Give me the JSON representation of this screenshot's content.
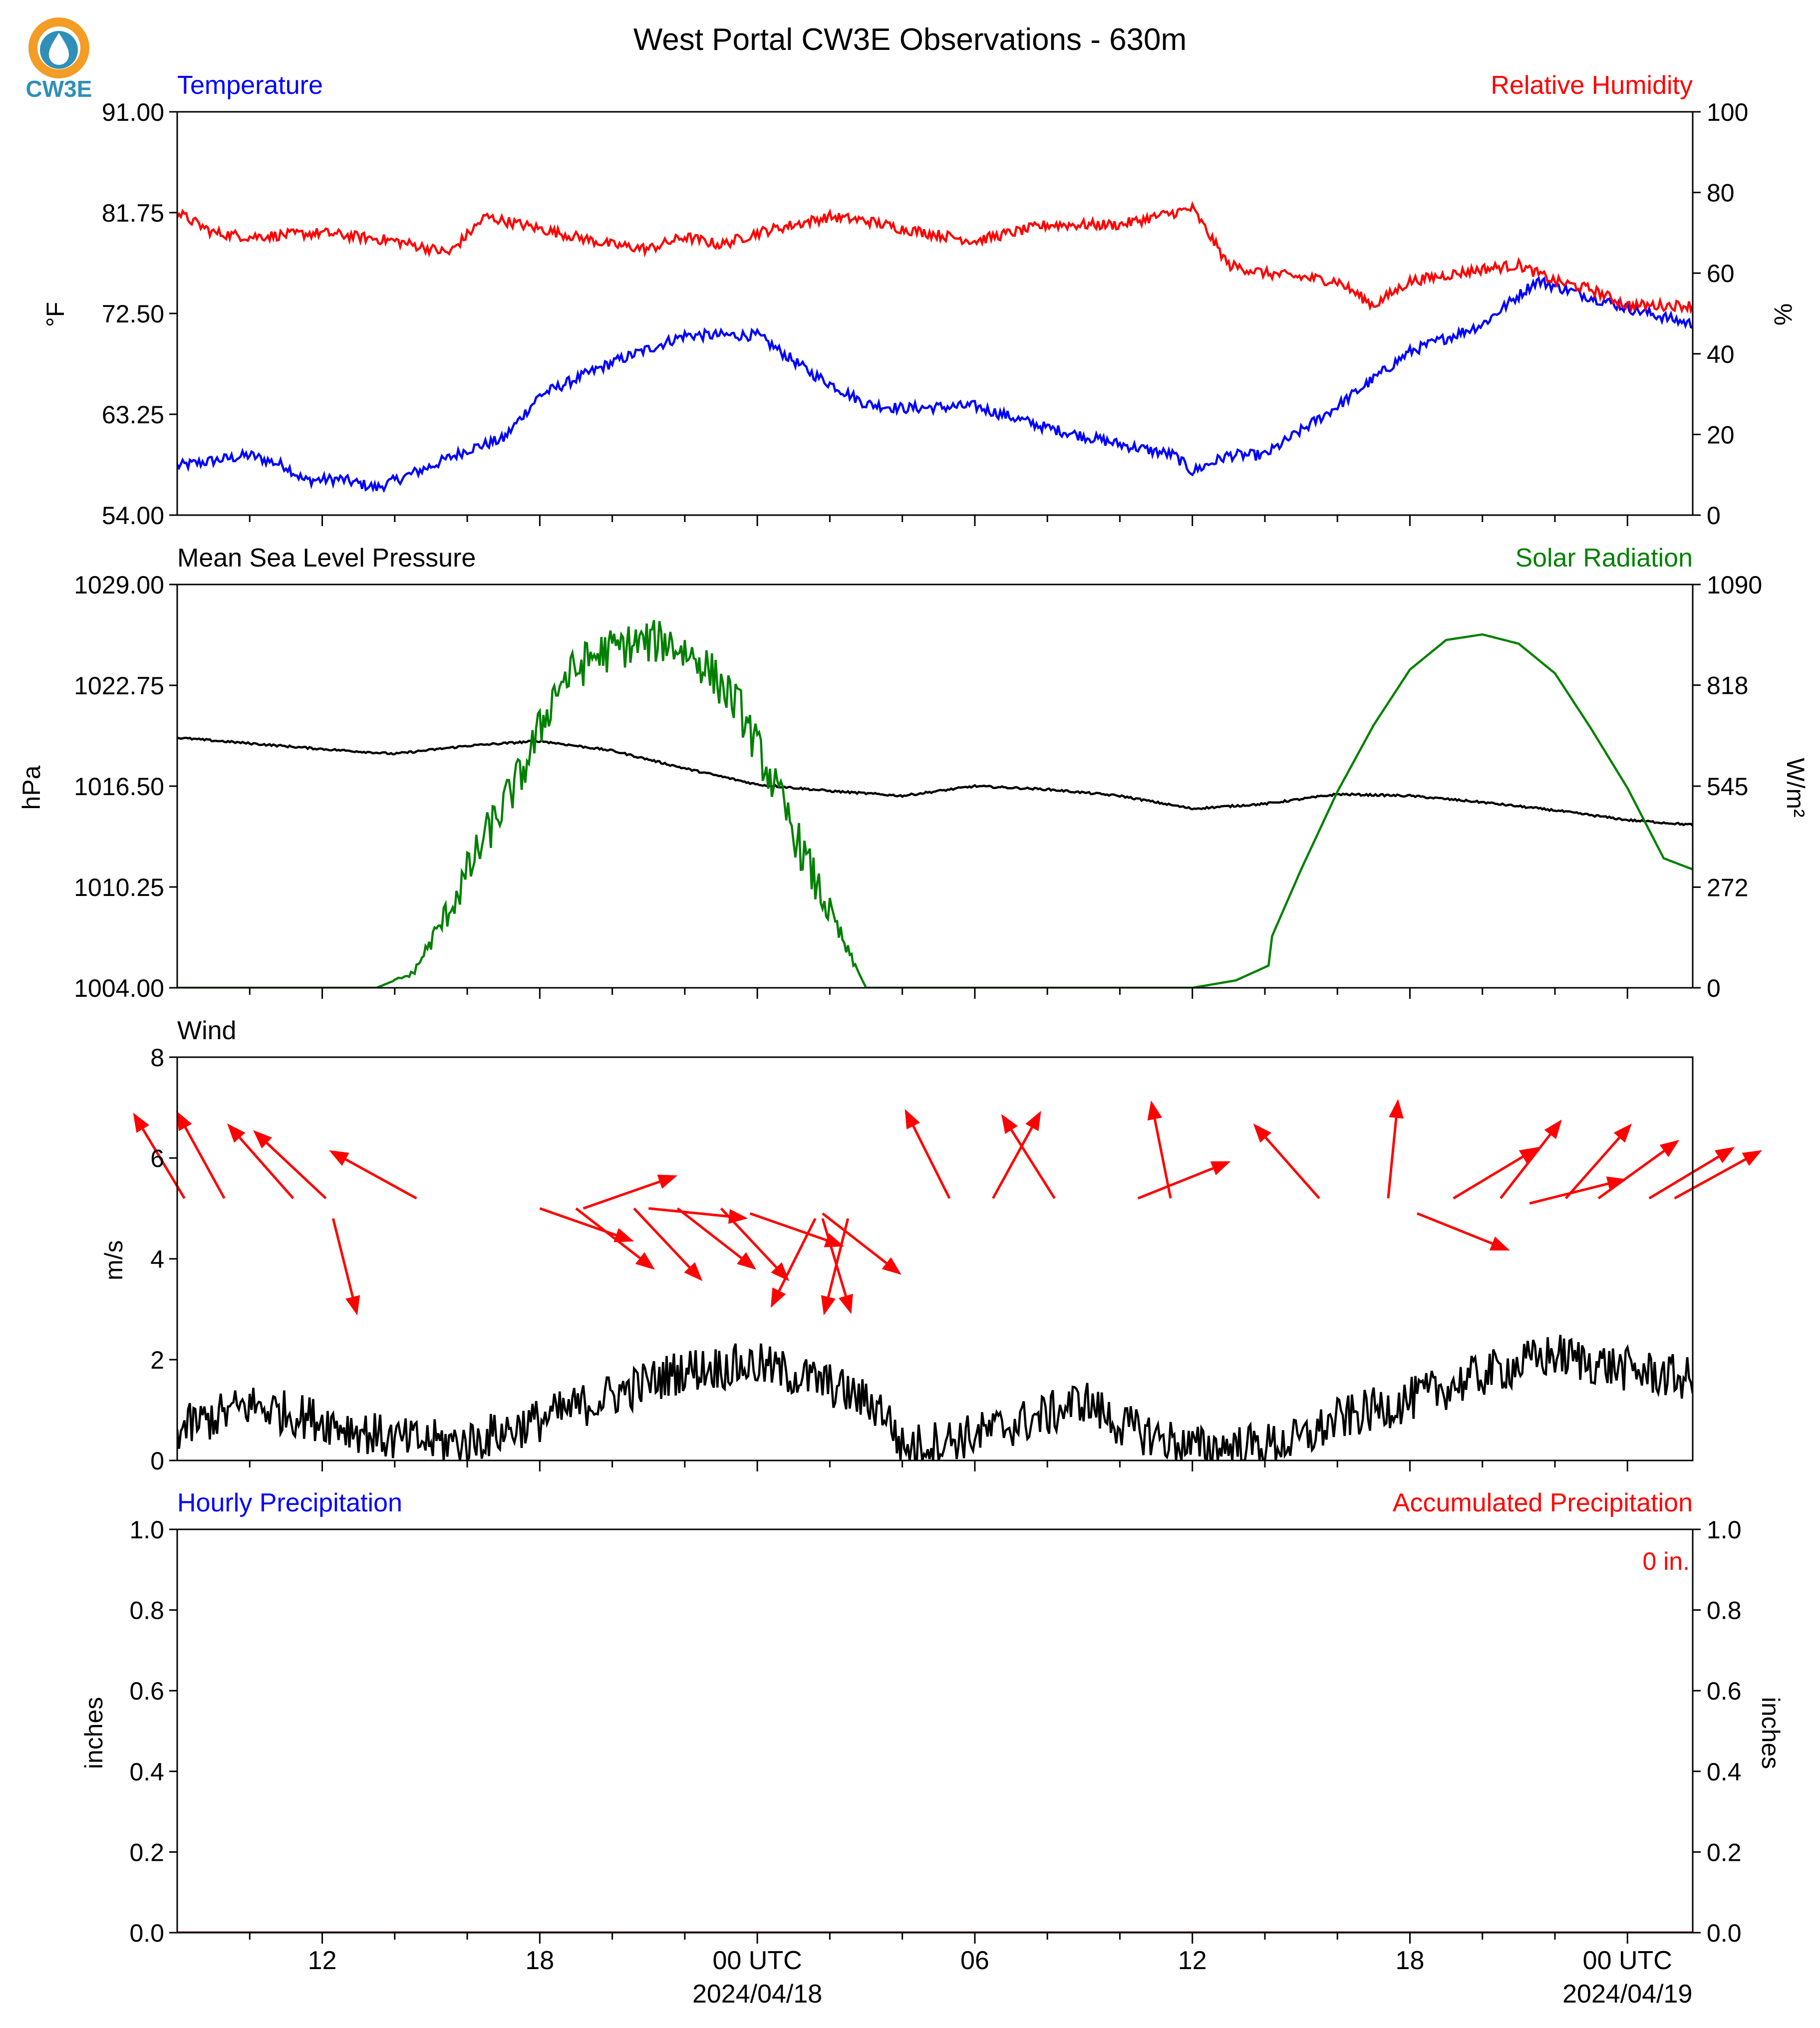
{
  "title": "West Portal CW3E Observations - 630m",
  "logo": {
    "text": "CW3E",
    "colors": {
      "ring": "#f39c26",
      "drop": "#2f8fb8"
    }
  },
  "colors": {
    "blue": "#0000ff",
    "red": "#ff0000",
    "green": "#008000",
    "black": "#000000",
    "darkred": "#8b0000"
  },
  "time_axis": {
    "range_hours": [
      -16,
      25.8
    ],
    "ticks": [
      {
        "hour": -12,
        "label": "12"
      },
      {
        "hour": -6,
        "label": "18"
      },
      {
        "hour": 0,
        "label": "00 UTC",
        "date": "2024/04/18"
      },
      {
        "hour": 6,
        "label": "06"
      },
      {
        "hour": 12,
        "label": "12"
      },
      {
        "hour": 18,
        "label": "18"
      },
      {
        "hour": 24,
        "label": "00 UTC",
        "date": "2024/04/19"
      }
    ]
  },
  "chart_data": [
    {
      "type": "line",
      "left_title": "Temperature",
      "right_title": "Relative Humidity",
      "left_axis": {
        "label": "°F",
        "ylim": [
          54,
          91
        ],
        "ticks": [
          "54.00",
          "63.25",
          "72.50",
          "81.75",
          "91.00"
        ]
      },
      "right_axis": {
        "label": "%",
        "ylim": [
          0,
          100
        ],
        "ticks": [
          "0",
          "20",
          "40",
          "60",
          "80",
          "100"
        ]
      },
      "series": [
        {
          "name": "Temperature",
          "axis": "left",
          "color": "#0000ff",
          "noise": 0.5,
          "x": [
            -16,
            -14,
            -13,
            -12.5,
            -11.5,
            -10.5,
            -9,
            -8,
            -7,
            -6,
            -4,
            -2,
            0,
            1.5,
            3,
            4,
            6,
            8,
            10,
            11.5,
            12,
            13,
            14,
            16,
            18,
            20,
            21.5,
            23,
            24,
            25.8
          ],
          "y": [
            58.5,
            59.5,
            58.5,
            57.2,
            57.3,
            56.5,
            58.5,
            60,
            61,
            65,
            68,
            70.5,
            70.5,
            67,
            64.2,
            63.8,
            64,
            62,
            60.5,
            59.5,
            58,
            59.5,
            59.5,
            64,
            69,
            71.5,
            75.5,
            74,
            73,
            71.5
          ]
        },
        {
          "name": "Relative Humidity",
          "axis": "right",
          "color": "#ff0000",
          "noise": 1.3,
          "x": [
            -16,
            -15,
            -14,
            -12,
            -10,
            -8.5,
            -7.5,
            -6,
            -4,
            -3,
            -2,
            -1,
            0,
            2,
            3,
            4,
            6,
            8,
            10,
            12,
            13,
            14,
            16,
            17,
            18,
            20,
            21,
            22,
            23,
            24,
            25.8
          ],
          "y": [
            75,
            70,
            69,
            70,
            68,
            65,
            74,
            71,
            67,
            66,
            69,
            67,
            70,
            74,
            73,
            71,
            68,
            72,
            72,
            76,
            62,
            60,
            58,
            52,
            58,
            61,
            62,
            58,
            56,
            52,
            52
          ]
        }
      ]
    },
    {
      "type": "line",
      "left_title": "Mean Sea Level Pressure",
      "right_title": "Solar Radiation",
      "left_axis": {
        "label": "hPa",
        "ylim": [
          1004,
          1029
        ],
        "ticks": [
          "1004.00",
          "1010.25",
          "1016.50",
          "1022.75",
          "1029.00"
        ]
      },
      "right_axis": {
        "label": "W/m²",
        "ylim": [
          0,
          1090
        ],
        "ticks": [
          "0",
          "272",
          "545",
          "818",
          "1090"
        ]
      },
      "series": [
        {
          "name": "Mean Sea Level Pressure",
          "axis": "left",
          "color": "#000000",
          "noise": 0.06,
          "x": [
            -16,
            -12,
            -10,
            -8,
            -6,
            -4,
            -2,
            0,
            2,
            4,
            6,
            8,
            10,
            12,
            14,
            16,
            18,
            20,
            22,
            24,
            25.8
          ],
          "y": [
            1019.5,
            1018.8,
            1018.5,
            1019,
            1019.3,
            1018.7,
            1017.6,
            1016.6,
            1016.2,
            1015.9,
            1016.5,
            1016.3,
            1015.9,
            1015.1,
            1015.4,
            1016,
            1015.9,
            1015.5,
            1015.0,
            1014.4,
            1014.1
          ]
        },
        {
          "name": "Solar Radiation",
          "axis": "right",
          "color": "#008000",
          "noise": 0,
          "x": [
            -16,
            -10.5,
            -9.5,
            -8.5,
            -7.5,
            -6.5,
            -5.5,
            -4.5,
            -3.5,
            -2.5,
            -1.5,
            -0.5,
            0.5,
            1.5,
            2.5,
            3,
            6,
            9,
            12,
            13.2,
            14.1,
            14.2,
            15,
            16,
            17,
            18,
            19,
            20,
            21,
            22,
            23,
            24,
            25,
            25.8
          ],
          "y": [
            0,
            0,
            40,
            220,
            420,
            590,
            830,
            910,
            940,
            950,
            890,
            770,
            550,
            320,
            100,
            0,
            0,
            0,
            0,
            20,
            60,
            140,
            320,
            530,
            710,
            860,
            940,
            955,
            930,
            850,
            700,
            540,
            350,
            320
          ],
          "noisy_range": [
            -10.5,
            2.8
          ],
          "noise_amp": 120
        }
      ]
    },
    {
      "type": "line",
      "left_title": "Wind",
      "left_axis": {
        "label": "m/s",
        "ylim": [
          0,
          8
        ],
        "ticks": [
          "0",
          "2",
          "4",
          "6",
          "8"
        ]
      },
      "series": [
        {
          "name": "Wind",
          "axis": "left",
          "color": "#000000",
          "noise": 0.45,
          "x": [
            -16,
            -14,
            -12,
            -10,
            -8,
            -6,
            -4,
            -2,
            0,
            2,
            3.5,
            4,
            6,
            8,
            9,
            10,
            12,
            14,
            15,
            16,
            18,
            20,
            22,
            24,
            25.8
          ],
          "y": [
            0.6,
            1.1,
            0.8,
            0.4,
            0.35,
            0.8,
            1.3,
            1.8,
            1.9,
            1.5,
            1.0,
            0.25,
            0.5,
            0.9,
            1.2,
            0.7,
            0.25,
            0.3,
            0.4,
            0.8,
            1.2,
            1.7,
            2.1,
            1.8,
            1.6
          ]
        }
      ],
      "arrows": [
        {
          "x": -15.8,
          "y": 5.2,
          "dir_x": -0.6,
          "dir_y": 1.0
        },
        {
          "x": -14.7,
          "y": 5.2,
          "dir_x": -0.55,
          "dir_y": 1.0
        },
        {
          "x": -12.8,
          "y": 5.2,
          "dir_x": -0.75,
          "dir_y": 0.85
        },
        {
          "x": -11.9,
          "y": 5.2,
          "dir_x": -0.8,
          "dir_y": 0.75
        },
        {
          "x": -9.4,
          "y": 5.2,
          "dir_x": -1.0,
          "dir_y": 0.55
        },
        {
          "x": -11.7,
          "y": 4.8,
          "dir_x": 0.25,
          "dir_y": -1.0
        },
        {
          "x": -6,
          "y": 5.0,
          "dir_x": 1.0,
          "dir_y": -0.35
        },
        {
          "x": -5,
          "y": 5.0,
          "dir_x": 0.9,
          "dir_y": -0.7
        },
        {
          "x": -3.4,
          "y": 5.0,
          "dir_x": 0.8,
          "dir_y": -0.85
        },
        {
          "x": -4.8,
          "y": 5.0,
          "dir_x": 1.0,
          "dir_y": 0.35
        },
        {
          "x": -3,
          "y": 5.0,
          "dir_x": 1.0,
          "dir_y": -0.1
        },
        {
          "x": -2.2,
          "y": 5.0,
          "dir_x": 0.9,
          "dir_y": -0.7
        },
        {
          "x": -1,
          "y": 5.0,
          "dir_x": 0.75,
          "dir_y": -0.8
        },
        {
          "x": -0.2,
          "y": 4.9,
          "dir_x": 1.0,
          "dir_y": -0.35
        },
        {
          "x": 1.6,
          "y": 4.8,
          "dir_x": -0.5,
          "dir_y": -1.0
        },
        {
          "x": 2.5,
          "y": 4.8,
          "dir_x": -0.25,
          "dir_y": -1.0
        },
        {
          "x": 1.8,
          "y": 4.8,
          "dir_x": 0.3,
          "dir_y": -1.0
        },
        {
          "x": 1.8,
          "y": 4.9,
          "dir_x": 0.9,
          "dir_y": -0.7
        },
        {
          "x": 5.3,
          "y": 5.2,
          "dir_x": -0.5,
          "dir_y": 1.0
        },
        {
          "x": 6.5,
          "y": 5.2,
          "dir_x": 0.55,
          "dir_y": 1.0
        },
        {
          "x": 8.2,
          "y": 5.2,
          "dir_x": -0.6,
          "dir_y": 0.95
        },
        {
          "x": 10.5,
          "y": 5.2,
          "dir_x": 1.0,
          "dir_y": 0.4
        },
        {
          "x": 11.4,
          "y": 5.2,
          "dir_x": -0.2,
          "dir_y": 1.0
        },
        {
          "x": 15.5,
          "y": 5.2,
          "dir_x": -0.75,
          "dir_y": 0.85
        },
        {
          "x": 17.4,
          "y": 5.2,
          "dir_x": 0.1,
          "dir_y": 1.0
        },
        {
          "x": 19.2,
          "y": 5.2,
          "dir_x": 1.0,
          "dir_y": 0.6
        },
        {
          "x": 20.5,
          "y": 5.2,
          "dir_x": 0.7,
          "dir_y": 0.9
        },
        {
          "x": 18.2,
          "y": 4.9,
          "dir_x": 1.0,
          "dir_y": -0.4
        },
        {
          "x": 21.3,
          "y": 5.1,
          "dir_x": 1.0,
          "dir_y": 0.25
        },
        {
          "x": 22.3,
          "y": 5.2,
          "dir_x": 0.75,
          "dir_y": 0.85
        },
        {
          "x": 23.2,
          "y": 5.2,
          "dir_x": 0.9,
          "dir_y": 0.65
        },
        {
          "x": 24.6,
          "y": 5.2,
          "dir_x": 1.0,
          "dir_y": 0.6
        },
        {
          "x": 25.3,
          "y": 5.2,
          "dir_x": 1.0,
          "dir_y": 0.55
        }
      ]
    },
    {
      "type": "bar",
      "left_title": "Hourly Precipitation",
      "right_title": "Accumulated Precipitation",
      "left_axis": {
        "label": "inches",
        "ylim": [
          0,
          1.0
        ],
        "ticks": [
          "0.0",
          "0.2",
          "0.4",
          "0.6",
          "0.8",
          "1.0"
        ]
      },
      "right_axis": {
        "label": "inches",
        "ylim": [
          0,
          1.0
        ],
        "ticks": [
          "0.0",
          "0.2",
          "0.4",
          "0.6",
          "0.8",
          "1.0"
        ]
      },
      "annotation": "0 in.",
      "series": [
        {
          "name": "Accumulated Precipitation",
          "axis": "right",
          "color": "#8b0000",
          "x": [
            -16,
            25.8
          ],
          "y": [
            0,
            0
          ]
        }
      ]
    }
  ]
}
